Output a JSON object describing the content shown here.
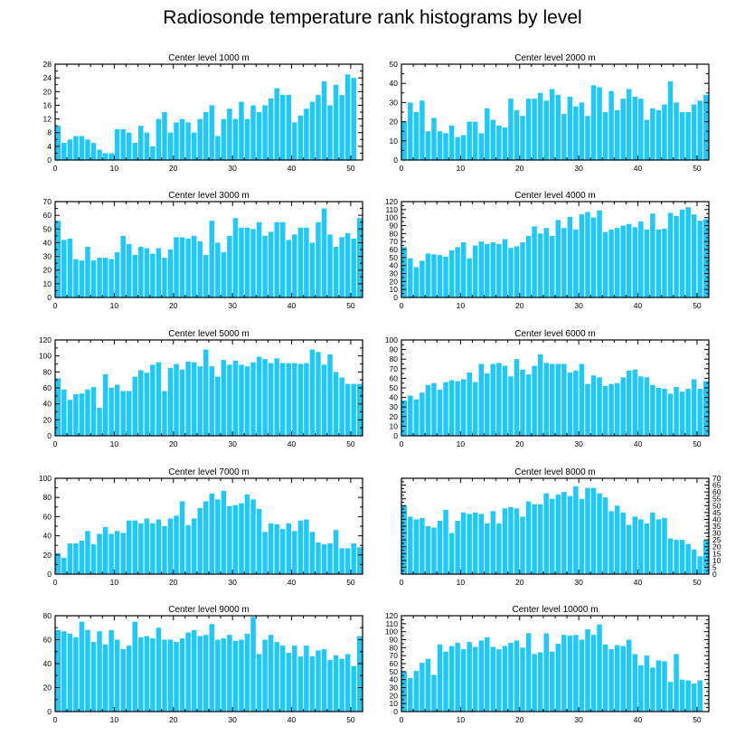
{
  "figure": {
    "title": "Radiosonde temperature rank histograms by level"
  },
  "colors": {
    "bar": "#1ec8f8",
    "axis": "#000000",
    "background": "#ffffff"
  },
  "chart_data": [
    {
      "type": "bar",
      "title": "Center level 1000 m",
      "xlim": [
        0,
        52
      ],
      "ylim": [
        0,
        28
      ],
      "xticks": [
        0,
        10,
        20,
        30,
        40,
        50
      ],
      "yticks": [
        0,
        4,
        8,
        12,
        16,
        20,
        24,
        28
      ],
      "ytick_side": "left",
      "values": [
        10,
        5,
        6,
        7,
        7,
        6,
        5,
        3,
        2,
        2,
        9,
        9,
        8,
        5,
        10,
        8,
        4,
        12,
        14,
        8,
        11,
        12,
        11,
        8,
        12,
        14,
        16,
        7,
        12,
        15,
        12,
        17,
        12,
        16,
        14,
        16,
        18,
        21,
        19,
        19,
        11,
        13,
        15,
        17,
        19,
        23,
        16,
        22,
        19,
        25,
        24
      ]
    },
    {
      "type": "bar",
      "title": "Center level 2000 m",
      "xlim": [
        0,
        52
      ],
      "ylim": [
        0,
        50
      ],
      "xticks": [
        0,
        10,
        20,
        30,
        40,
        50
      ],
      "yticks": [
        0,
        10,
        20,
        30,
        40,
        50
      ],
      "ytick_side": "left",
      "values": [
        20,
        30,
        25,
        31,
        15,
        22,
        15,
        14,
        18,
        12,
        13,
        20,
        20,
        14,
        27,
        21,
        18,
        17,
        32,
        26,
        23,
        32,
        32,
        35,
        31,
        37,
        34,
        24,
        33,
        28,
        30,
        23,
        39,
        38,
        25,
        36,
        26,
        32,
        37,
        33,
        32,
        21,
        27,
        26,
        29,
        41,
        30,
        25,
        25,
        29,
        31,
        34
      ]
    },
    {
      "type": "bar",
      "title": "Center level 3000 m",
      "xlim": [
        0,
        52
      ],
      "ylim": [
        0,
        70
      ],
      "xticks": [
        0,
        10,
        20,
        30,
        40,
        50
      ],
      "yticks": [
        0,
        10,
        20,
        30,
        40,
        50,
        60,
        70
      ],
      "ytick_side": "left",
      "values": [
        56,
        42,
        43,
        28,
        27,
        37,
        27,
        29,
        29,
        28,
        33,
        45,
        39,
        31,
        37,
        36,
        32,
        36,
        29,
        35,
        44,
        44,
        43,
        45,
        41,
        31,
        56,
        40,
        33,
        45,
        58,
        51,
        51,
        50,
        55,
        45,
        48,
        55,
        55,
        42,
        46,
        51,
        51,
        40,
        55,
        65,
        46,
        37,
        44,
        47,
        43,
        58
      ]
    },
    {
      "type": "bar",
      "title": "Center level 4000 m",
      "xlim": [
        0,
        52
      ],
      "ylim": [
        0,
        120
      ],
      "xticks": [
        0,
        10,
        20,
        30,
        40,
        50
      ],
      "yticks": [
        0,
        10,
        20,
        30,
        40,
        50,
        60,
        70,
        80,
        90,
        100,
        110,
        120
      ],
      "ytick_side": "left",
      "values": [
        63,
        49,
        38,
        46,
        55,
        54,
        53,
        51,
        59,
        63,
        69,
        49,
        65,
        70,
        67,
        69,
        67,
        73,
        62,
        64,
        69,
        77,
        89,
        80,
        87,
        77,
        97,
        87,
        101,
        85,
        104,
        107,
        100,
        109,
        82,
        85,
        87,
        90,
        92,
        88,
        95,
        85,
        105,
        85,
        86,
        106,
        102,
        110,
        113,
        104,
        96,
        98
      ]
    },
    {
      "type": "bar",
      "title": "Center level 5000 m",
      "xlim": [
        0,
        52
      ],
      "ylim": [
        0,
        120
      ],
      "xticks": [
        0,
        10,
        20,
        30,
        40,
        50
      ],
      "yticks": [
        0,
        20,
        40,
        60,
        80,
        100,
        120
      ],
      "ytick_side": "left",
      "values": [
        72,
        58,
        45,
        52,
        53,
        58,
        61,
        35,
        77,
        60,
        64,
        56,
        56,
        74,
        82,
        79,
        89,
        92,
        56,
        85,
        90,
        83,
        93,
        92,
        87,
        108,
        87,
        74,
        95,
        89,
        94,
        89,
        87,
        92,
        99,
        96,
        91,
        97,
        91,
        91,
        91,
        90,
        91,
        108,
        105,
        89,
        102,
        80,
        73,
        65,
        65,
        65
      ]
    },
    {
      "type": "bar",
      "title": "Center level 6000 m",
      "xlim": [
        0,
        52
      ],
      "ylim": [
        0,
        100
      ],
      "xticks": [
        0,
        10,
        20,
        30,
        40,
        50
      ],
      "yticks": [
        0,
        10,
        20,
        30,
        40,
        50,
        60,
        70,
        80,
        90,
        100
      ],
      "ytick_side": "left",
      "values": [
        37,
        42,
        38,
        45,
        53,
        55,
        48,
        56,
        58,
        57,
        59,
        66,
        56,
        75,
        65,
        75,
        76,
        73,
        62,
        80,
        69,
        64,
        73,
        85,
        76,
        75,
        75,
        75,
        66,
        68,
        75,
        54,
        63,
        61,
        52,
        54,
        55,
        61,
        68,
        69,
        62,
        61,
        53,
        50,
        49,
        44,
        51,
        46,
        49,
        59,
        49,
        57
      ]
    },
    {
      "type": "bar",
      "title": "Center level 7000 m",
      "xlim": [
        0,
        52
      ],
      "ylim": [
        0,
        100
      ],
      "xticks": [
        0,
        10,
        20,
        30,
        40,
        50
      ],
      "yticks": [
        0,
        20,
        40,
        60,
        80,
        100
      ],
      "ytick_side": "left",
      "values": [
        22,
        17,
        32,
        32,
        35,
        45,
        31,
        42,
        49,
        42,
        45,
        43,
        56,
        56,
        53,
        58,
        53,
        57,
        50,
        58,
        61,
        76,
        51,
        58,
        69,
        76,
        84,
        78,
        87,
        71,
        72,
        74,
        83,
        78,
        68,
        44,
        53,
        52,
        47,
        53,
        45,
        56,
        57,
        44,
        33,
        31,
        32,
        46,
        27,
        27,
        32,
        28
      ]
    },
    {
      "type": "bar",
      "title": "Center level 8000 m",
      "xlim": [
        0,
        52
      ],
      "ylim": [
        0,
        70
      ],
      "xticks": [
        0,
        10,
        20,
        30,
        40,
        50
      ],
      "yticks": [
        0,
        5,
        10,
        15,
        20,
        25,
        30,
        35,
        40,
        45,
        50,
        55,
        60,
        65,
        70
      ],
      "ytick_side": "right",
      "values": [
        50,
        42,
        40,
        41,
        35,
        34,
        39,
        47,
        30,
        39,
        45,
        44,
        45,
        44,
        37,
        46,
        37,
        48,
        49,
        48,
        42,
        53,
        51,
        51,
        59,
        55,
        58,
        60,
        57,
        64,
        55,
        63,
        63,
        59,
        56,
        46,
        50,
        45,
        36,
        42,
        40,
        37,
        45,
        40,
        41,
        26,
        25,
        25,
        22,
        18,
        13,
        25
      ]
    },
    {
      "type": "bar",
      "title": "Center level 9000 m",
      "xlim": [
        0,
        52
      ],
      "ylim": [
        0,
        80
      ],
      "xticks": [
        0,
        10,
        20,
        30,
        40,
        50
      ],
      "yticks": [
        0,
        20,
        40,
        60,
        80
      ],
      "ytick_side": "left",
      "values": [
        68,
        67,
        65,
        62,
        75,
        68,
        58,
        67,
        56,
        68,
        60,
        52,
        55,
        75,
        62,
        63,
        61,
        70,
        60,
        60,
        58,
        61,
        66,
        68,
        63,
        64,
        73,
        60,
        61,
        64,
        59,
        60,
        65,
        79,
        48,
        60,
        64,
        58,
        55,
        49,
        55,
        46,
        55,
        46,
        51,
        52,
        43,
        47,
        44,
        48,
        38,
        63
      ]
    },
    {
      "type": "bar",
      "title": "Center level 10000 m",
      "xlim": [
        0,
        52
      ],
      "ylim": [
        0,
        120
      ],
      "xticks": [
        0,
        10,
        20,
        30,
        40,
        50
      ],
      "yticks": [
        0,
        10,
        20,
        30,
        40,
        50,
        60,
        70,
        80,
        90,
        100,
        110,
        120
      ],
      "ytick_side": "left",
      "values": [
        50,
        42,
        51,
        61,
        66,
        46,
        84,
        75,
        82,
        86,
        78,
        87,
        81,
        89,
        93,
        81,
        78,
        82,
        86,
        89,
        80,
        98,
        72,
        74,
        98,
        75,
        85,
        96,
        95,
        96,
        90,
        103,
        96,
        109,
        84,
        78,
        83,
        82,
        90,
        72,
        58,
        70,
        55,
        64,
        63,
        37,
        72,
        40,
        39,
        35,
        39,
        0
      ]
    }
  ]
}
